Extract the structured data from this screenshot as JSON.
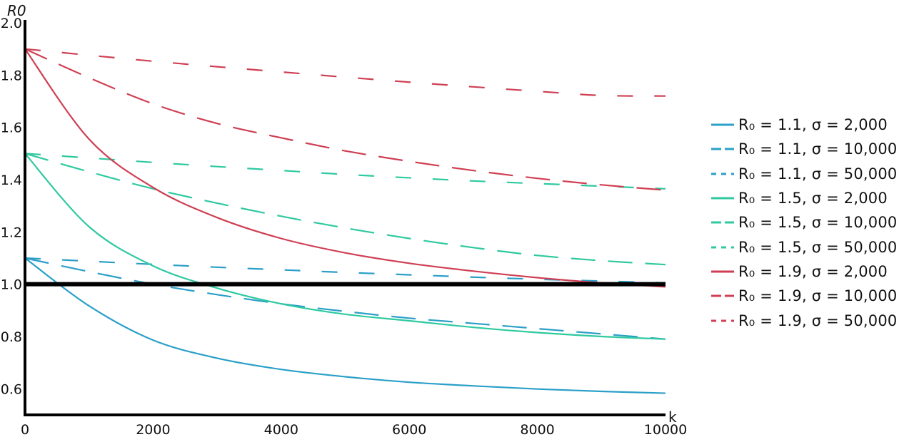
{
  "chart_data": {
    "type": "line",
    "xlabel": "k",
    "ylabel": "R0",
    "xlim": [
      0,
      10000
    ],
    "ylim": [
      0.5,
      2.0
    ],
    "x_ticks": [
      "0",
      "2000",
      "4000",
      "6000",
      "8000",
      "10000"
    ],
    "y_ticks": [
      "0.6",
      "0.8",
      "1.0",
      "1.2",
      "1.4",
      "1.6",
      "1.8",
      "2.0"
    ],
    "threshold_line": 1.0,
    "legend_position": "right",
    "series": [
      {
        "name": "R0 = 1.1, σ = 2,000",
        "r0": 1.1,
        "sigma": 2000,
        "color": "#2a9fc8",
        "style": "solid",
        "legend_text": "R₀ = 1.1, σ = 2,000",
        "x": [
          0,
          1000,
          2000,
          3000,
          4000,
          5000,
          6000,
          7000,
          8000,
          9000,
          10000
        ],
        "y": [
          1.1,
          0.917,
          0.786,
          0.717,
          0.674,
          0.646,
          0.625,
          0.611,
          0.599,
          0.59,
          0.583
        ]
      },
      {
        "name": "R0 = 1.1, σ = 10,000",
        "r0": 1.1,
        "sigma": 10000,
        "color": "#2a9fc8",
        "style": "longdash",
        "legend_text": "R₀ = 1.1, σ = 10,000",
        "x": [
          0,
          1000,
          2000,
          3000,
          4000,
          5000,
          6000,
          7000,
          8000,
          9000,
          10000
        ],
        "y": [
          1.1,
          1.048,
          1.0,
          0.96,
          0.925,
          0.896,
          0.87,
          0.85,
          0.83,
          0.81,
          0.79
        ]
      },
      {
        "name": "R0 = 1.1, σ = 50,000",
        "r0": 1.1,
        "sigma": 50000,
        "color": "#2a9fc8",
        "style": "shortdash",
        "legend_text": "R₀ = 1.1, σ = 50,000",
        "x": [
          0,
          1000,
          2000,
          3000,
          4000,
          5000,
          6000,
          7000,
          8000,
          9000,
          10000
        ],
        "y": [
          1.1,
          1.088,
          1.076,
          1.065,
          1.055,
          1.045,
          1.036,
          1.027,
          1.019,
          1.012,
          1.005
        ]
      },
      {
        "name": "R0 = 1.5, σ = 2,000",
        "r0": 1.5,
        "sigma": 2000,
        "color": "#2ec9a0",
        "style": "solid",
        "legend_text": "R₀ = 1.5, σ = 2,000",
        "x": [
          0,
          1000,
          2000,
          3000,
          4000,
          5000,
          6000,
          7000,
          8000,
          9000,
          10000
        ],
        "y": [
          1.5,
          1.22,
          1.07,
          0.985,
          0.925,
          0.885,
          0.86,
          0.835,
          0.815,
          0.8,
          0.79
        ]
      },
      {
        "name": "R0 = 1.5, σ = 10,000",
        "r0": 1.5,
        "sigma": 10000,
        "color": "#2ec9a0",
        "style": "longdash",
        "legend_text": "R₀ = 1.5, σ = 10,000",
        "x": [
          0,
          1000,
          2000,
          3000,
          4000,
          5000,
          6000,
          7000,
          8000,
          9000,
          10000
        ],
        "y": [
          1.5,
          1.43,
          1.365,
          1.31,
          1.26,
          1.215,
          1.175,
          1.14,
          1.11,
          1.09,
          1.075
        ]
      },
      {
        "name": "R0 = 1.5, σ = 50,000",
        "r0": 1.5,
        "sigma": 50000,
        "color": "#2ec9a0",
        "style": "shortdash",
        "legend_text": "R₀ = 1.5, σ = 50,000",
        "x": [
          0,
          1000,
          2000,
          3000,
          4000,
          5000,
          6000,
          7000,
          8000,
          9000,
          10000
        ],
        "y": [
          1.5,
          1.483,
          1.466,
          1.45,
          1.435,
          1.42,
          1.407,
          1.395,
          1.385,
          1.375,
          1.365
        ]
      },
      {
        "name": "R0 = 1.9, σ = 2,000",
        "r0": 1.9,
        "sigma": 2000,
        "color": "#cf3f53",
        "style": "solid",
        "legend_text": "R₀ = 1.9, σ = 2,000",
        "x": [
          0,
          1000,
          2000,
          3000,
          4000,
          5000,
          6000,
          7000,
          8000,
          9000,
          10000
        ],
        "y": [
          1.9,
          1.555,
          1.37,
          1.255,
          1.175,
          1.12,
          1.08,
          1.05,
          1.025,
          1.005,
          0.99
        ]
      },
      {
        "name": "R0 = 1.9, σ = 10,000",
        "r0": 1.9,
        "sigma": 10000,
        "color": "#cf3f53",
        "style": "longdash",
        "legend_text": "R₀ = 1.9, σ = 10,000",
        "x": [
          0,
          1000,
          2000,
          3000,
          4000,
          5000,
          6000,
          7000,
          8000,
          9000,
          10000
        ],
        "y": [
          1.9,
          1.79,
          1.69,
          1.615,
          1.56,
          1.51,
          1.47,
          1.435,
          1.405,
          1.38,
          1.36
        ]
      },
      {
        "name": "R0 = 1.9, σ = 50,000",
        "r0": 1.9,
        "sigma": 50000,
        "color": "#cf3f53",
        "style": "shortdash",
        "legend_text": "R₀ = 1.9, σ = 50,000",
        "x": [
          0,
          1000,
          2000,
          3000,
          4000,
          5000,
          6000,
          7000,
          8000,
          9000,
          10000
        ],
        "y": [
          1.9,
          1.876,
          1.853,
          1.832,
          1.812,
          1.792,
          1.773,
          1.755,
          1.738,
          1.722,
          1.72
        ]
      }
    ]
  }
}
